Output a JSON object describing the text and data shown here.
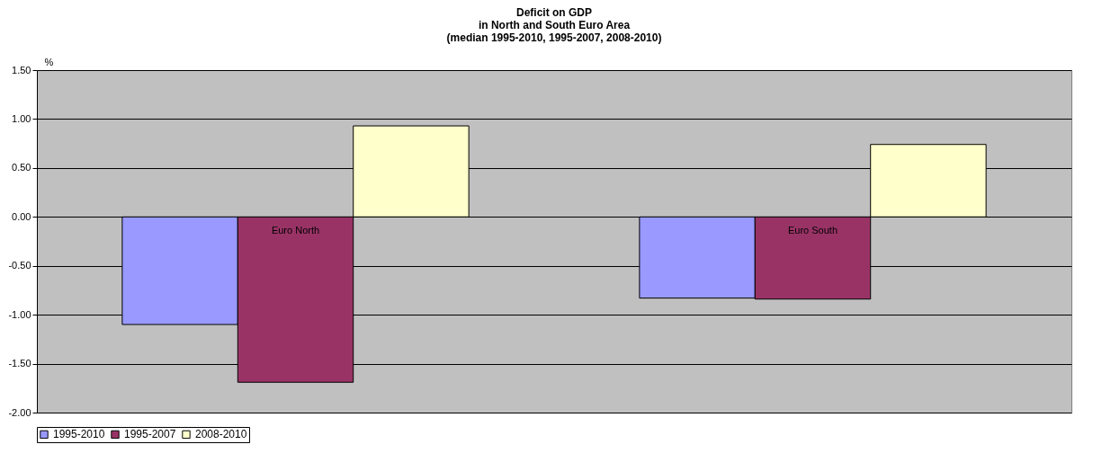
{
  "chart_data": {
    "type": "bar",
    "title": "Deficit on GDP\nin North and South Euro Area\n(median 1995-2010, 1995-2007, 2008-2010)",
    "ylabel": "%",
    "categories": [
      "Euro North",
      "Euro South"
    ],
    "series": [
      {
        "name": "1995-2010",
        "color": "#9999ff",
        "values": [
          -1.1,
          -0.83
        ]
      },
      {
        "name": "1995-2007",
        "color": "#993366",
        "values": [
          -1.69,
          -0.84
        ]
      },
      {
        "name": "2008-2010",
        "color": "#ffffcc",
        "values": [
          0.93,
          0.74
        ]
      }
    ],
    "ylim": [
      -2,
      1.5
    ],
    "yticks": [
      {
        "value": -2,
        "label": "-2.00"
      },
      {
        "value": -1.5,
        "label": "-1.50"
      },
      {
        "value": -1,
        "label": "-1.00"
      },
      {
        "value": -0.5,
        "label": "-0.50"
      },
      {
        "value": 0,
        "label": "0.00"
      },
      {
        "value": 0.5,
        "label": "0.50"
      },
      {
        "value": 1,
        "label": "1.00"
      },
      {
        "value": 1.5,
        "label": "1.50"
      }
    ],
    "grid": "y",
    "legend": "bottom"
  }
}
